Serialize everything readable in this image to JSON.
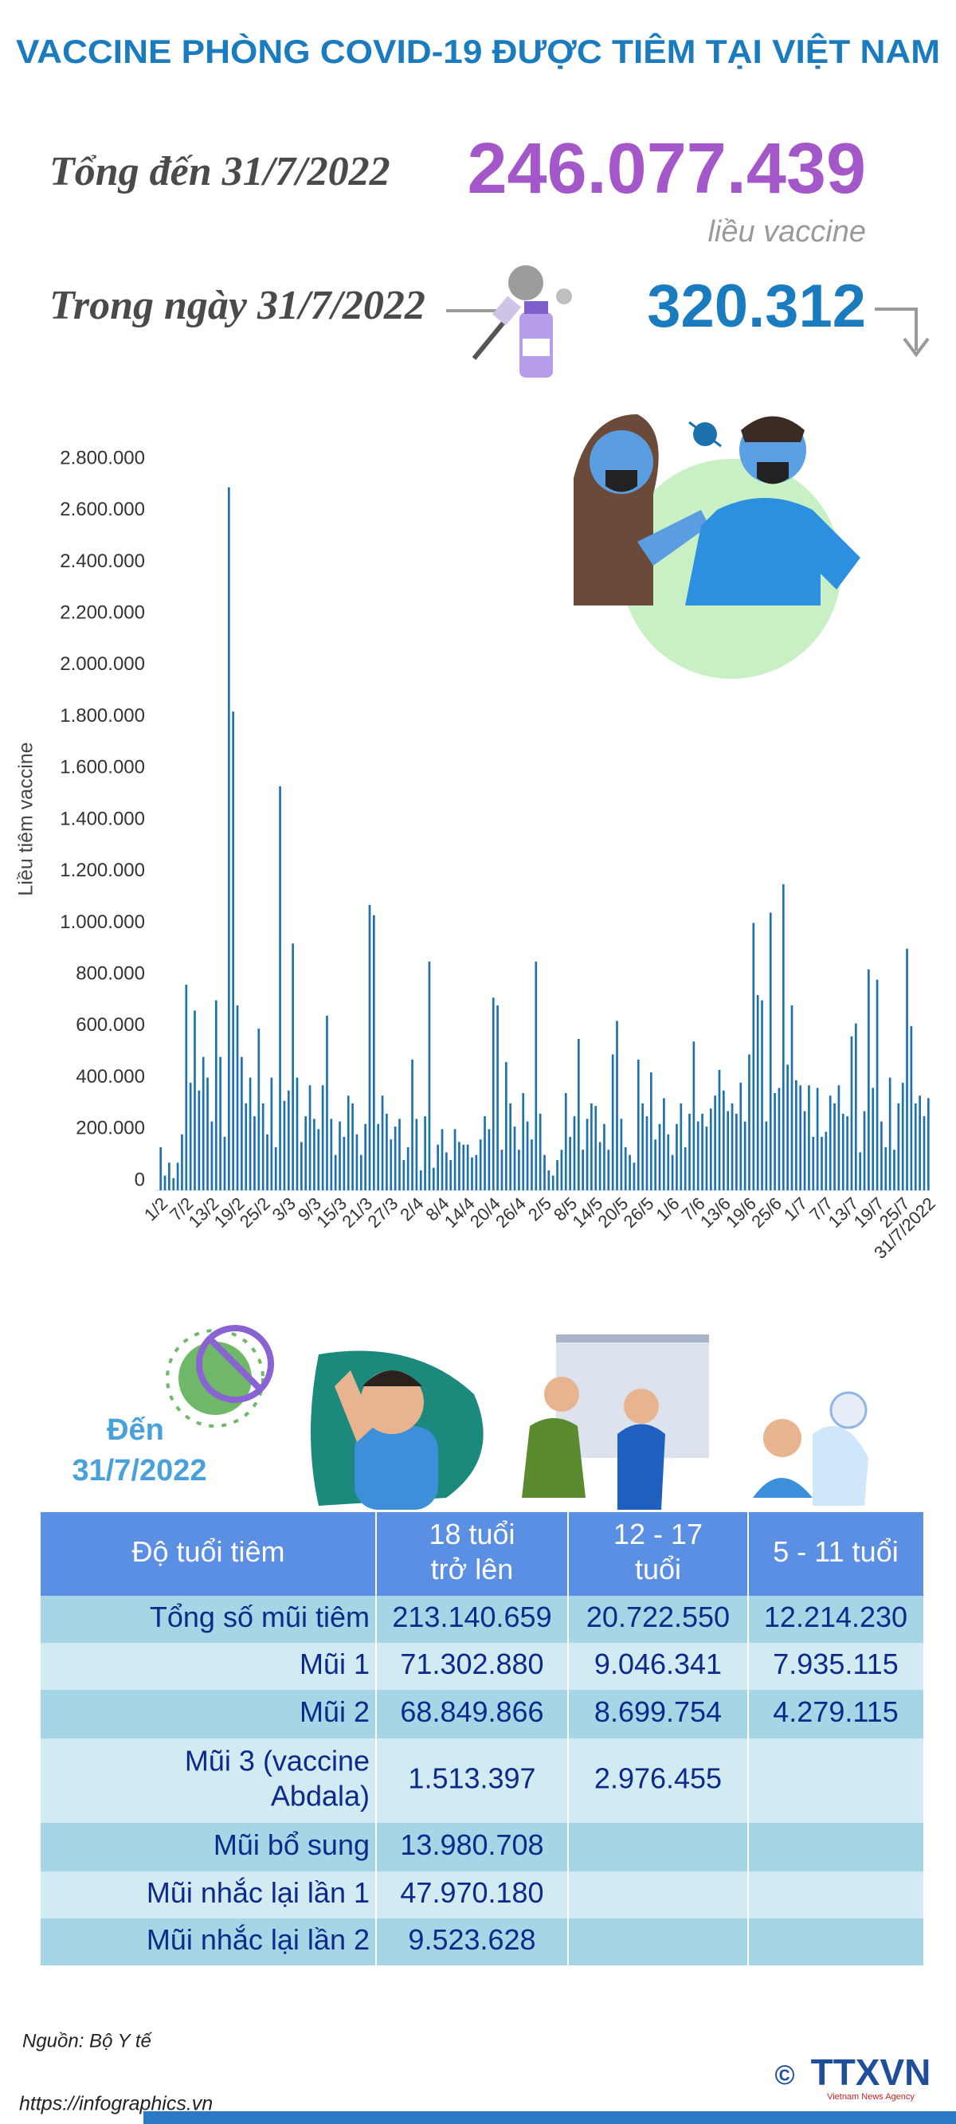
{
  "header": {
    "title": "VACCINE PHÒNG COVID-19 ĐƯỢC TIÊM TẠI VIỆT NAM"
  },
  "summary": {
    "total_label": "Tổng đến 31/7/2022",
    "total_value": "246.077.439",
    "total_unit": "liều vaccine",
    "day_label": "Trong ngày 31/7/2022",
    "day_value": "320.312"
  },
  "chart_data": {
    "type": "bar",
    "y_label": "Liều tiêm vaccine",
    "color": "#1d72ad",
    "grid": false,
    "ylim": [
      0,
      2800000
    ],
    "yticks": [
      0,
      {
        "value": 200000,
        "label": "200.000"
      },
      {
        "value": 400000,
        "label": "400.000"
      },
      {
        "value": 600000,
        "label": "600.000"
      },
      {
        "value": 800000,
        "label": "800.000"
      },
      {
        "value": 1000000,
        "label": "1.000.000"
      },
      {
        "value": 1200000,
        "label": "1.200.000"
      },
      {
        "value": 1400000,
        "label": "1.400.000"
      },
      {
        "value": 1600000,
        "label": "1.600.000"
      },
      {
        "value": 1800000,
        "label": "1.800.000"
      },
      {
        "value": 2000000,
        "label": "2.000.000"
      },
      {
        "value": 2200000,
        "label": "2.200.000"
      },
      {
        "value": 2400000,
        "label": "2.400.000"
      },
      {
        "value": 2600000,
        "label": "2.600.000"
      },
      {
        "value": 2800000,
        "label": "2.800.000"
      }
    ],
    "categories": [
      "1/2",
      null,
      null,
      null,
      null,
      null,
      "7/2",
      null,
      null,
      null,
      null,
      null,
      "13/2",
      null,
      null,
      null,
      null,
      null,
      "19/2",
      null,
      null,
      null,
      null,
      null,
      "25/2",
      null,
      null,
      null,
      null,
      null,
      "3/3",
      null,
      null,
      null,
      null,
      null,
      "9/3",
      null,
      null,
      null,
      null,
      null,
      "15/3",
      null,
      null,
      null,
      null,
      null,
      "21/3",
      null,
      null,
      null,
      null,
      null,
      "27/3",
      null,
      null,
      null,
      null,
      null,
      "2/4",
      null,
      null,
      null,
      null,
      null,
      "8/4",
      null,
      null,
      null,
      null,
      null,
      "14/4",
      null,
      null,
      null,
      null,
      null,
      "20/4",
      null,
      null,
      null,
      null,
      null,
      "26/4",
      null,
      null,
      null,
      null,
      null,
      "2/5",
      null,
      null,
      null,
      null,
      null,
      "8/5",
      null,
      null,
      null,
      null,
      null,
      "14/5",
      null,
      null,
      null,
      null,
      null,
      "20/5",
      null,
      null,
      null,
      null,
      null,
      "26/5",
      null,
      null,
      null,
      null,
      null,
      "1/6",
      null,
      null,
      null,
      null,
      null,
      "7/6",
      null,
      null,
      null,
      null,
      null,
      "13/6",
      null,
      null,
      null,
      null,
      null,
      "19/6",
      null,
      null,
      null,
      null,
      null,
      "25/6",
      null,
      null,
      null,
      null,
      null,
      "1/7",
      null,
      null,
      null,
      null,
      null,
      "7/7",
      null,
      null,
      null,
      null,
      null,
      "13/7",
      null,
      null,
      null,
      null,
      null,
      "19/7",
      null,
      null,
      null,
      null,
      null,
      "25/7",
      null,
      null,
      null,
      null,
      null,
      "31/7/2022"
    ],
    "values": [
      130000,
      20000,
      70000,
      10000,
      70000,
      180000,
      760000,
      380000,
      660000,
      350000,
      480000,
      400000,
      230000,
      700000,
      480000,
      170000,
      2690000,
      1820000,
      680000,
      480000,
      300000,
      400000,
      250000,
      590000,
      300000,
      180000,
      400000,
      130000,
      1530000,
      310000,
      350000,
      920000,
      400000,
      150000,
      250000,
      370000,
      240000,
      200000,
      370000,
      640000,
      240000,
      100000,
      230000,
      170000,
      330000,
      300000,
      180000,
      100000,
      220000,
      1070000,
      1030000,
      220000,
      330000,
      260000,
      160000,
      210000,
      240000,
      80000,
      130000,
      470000,
      240000,
      40000,
      250000,
      850000,
      50000,
      140000,
      200000,
      110000,
      80000,
      200000,
      150000,
      140000,
      140000,
      90000,
      100000,
      160000,
      250000,
      200000,
      710000,
      680000,
      120000,
      460000,
      300000,
      210000,
      120000,
      340000,
      230000,
      160000,
      850000,
      260000,
      100000,
      40000,
      20000,
      80000,
      120000,
      340000,
      170000,
      250000,
      550000,
      120000,
      240000,
      300000,
      290000,
      150000,
      220000,
      120000,
      490000,
      620000,
      240000,
      130000,
      100000,
      70000,
      470000,
      300000,
      250000,
      420000,
      160000,
      220000,
      320000,
      180000,
      100000,
      220000,
      300000,
      130000,
      260000,
      540000,
      230000,
      260000,
      210000,
      280000,
      330000,
      430000,
      350000,
      270000,
      300000,
      260000,
      380000,
      230000,
      490000,
      1000000,
      720000,
      700000,
      230000,
      1040000,
      340000,
      360000,
      1150000,
      450000,
      680000,
      390000,
      370000,
      270000,
      370000,
      170000,
      360000,
      170000,
      190000,
      330000,
      300000,
      370000,
      260000,
      250000,
      560000,
      610000,
      110000,
      270000,
      820000,
      360000,
      780000,
      230000,
      130000,
      400000,
      120000,
      300000,
      380000,
      900000,
      600000,
      300000,
      330000,
      250000,
      320312
    ]
  },
  "breakdown": {
    "date_label": [
      "Đến",
      "31/7/2022"
    ],
    "table": {
      "columns": [
        [
          "Độ tuổi tiêm"
        ],
        [
          "18 tuổi",
          "trở lên"
        ],
        [
          "12 - 17",
          "tuổi"
        ],
        [
          "5 - 11 tuổi"
        ]
      ],
      "rows": [
        {
          "label": [
            "Tổng số mũi tiêm"
          ],
          "cells": [
            "213.140.659",
            "20.722.550",
            "12.214.230"
          ]
        },
        {
          "label": [
            "Mũi 1"
          ],
          "cells": [
            "71.302.880",
            "9.046.341",
            "7.935.115"
          ]
        },
        {
          "label": [
            "Mũi 2"
          ],
          "cells": [
            "68.849.866",
            "8.699.754",
            "4.279.115"
          ]
        },
        {
          "label": [
            "Mũi 3 (vaccine",
            "Abdala)"
          ],
          "cells": [
            "1.513.397",
            "2.976.455",
            null
          ]
        },
        {
          "label": [
            "Mũi bổ sung"
          ],
          "cells": [
            "13.980.708",
            null,
            null
          ]
        },
        {
          "label": [
            "Mũi nhắc lại lần 1"
          ],
          "cells": [
            "47.970.180",
            null,
            null
          ]
        },
        {
          "label": [
            "Mũi nhắc lại lần 2"
          ],
          "cells": [
            "9.523.628",
            null,
            null
          ]
        }
      ]
    }
  },
  "footer": {
    "source": "Nguồn: Bộ Y tế",
    "url": "https://infographics.vn",
    "copyright": "©",
    "logo": "TTXVN",
    "logo_sub": "Vietnam News Agency"
  }
}
